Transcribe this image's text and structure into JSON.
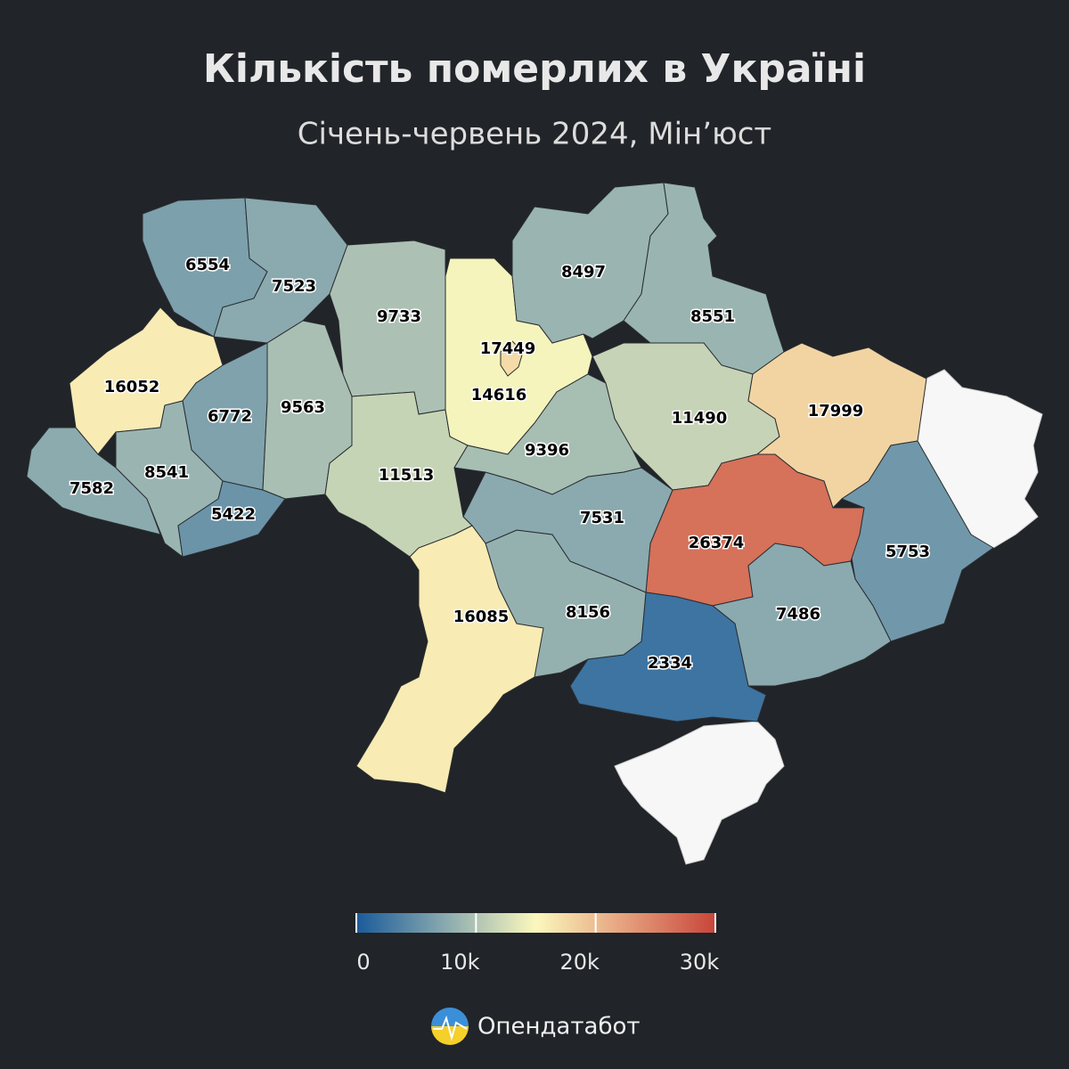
{
  "chart_data": {
    "type": "choropleth",
    "title": "Кількість померлих в Україні",
    "subtitle": "Січень-червень 2024, Мін’юст",
    "values": [
      6554,
      7523,
      9733,
      17449,
      16052,
      6772,
      9563,
      7582,
      8541,
      5422,
      11513,
      14616,
      8497,
      8551,
      11490,
      17999,
      5753,
      26374,
      7486,
      2334,
      8156,
      7531,
      9396,
      16085
    ],
    "colors": [
      "#1a5b9a",
      "#8aaaaf",
      "#fbf8bd",
      "#e59f7c",
      "#c8453a"
    ],
    "vlim": [
      0,
      30000
    ],
    "ticks": [
      0,
      {
        "value": 10000,
        "label": "10k"
      },
      {
        "value": 20000,
        "label": "20k"
      },
      {
        "value": 30000,
        "label": "30k"
      }
    ],
    "brand": "Опендатабот"
  }
}
